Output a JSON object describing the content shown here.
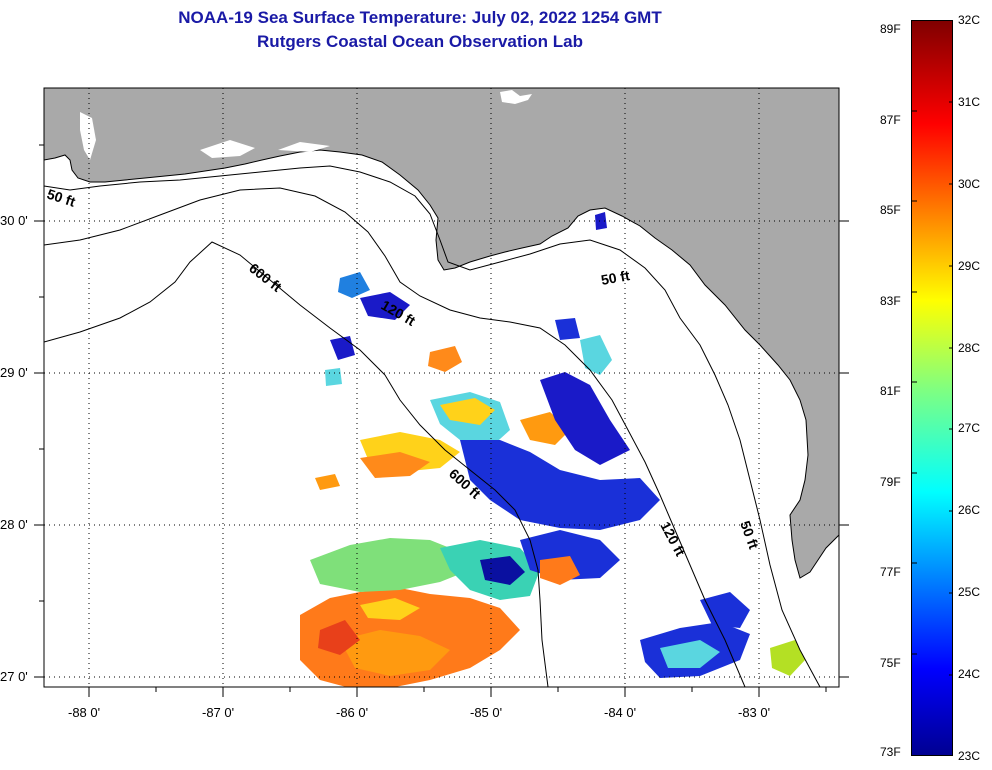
{
  "title": {
    "line1": "NOAA-19 Sea Surface Temperature:  July 02, 2022 1254 GMT",
    "line2": "Rutgers Coastal Ocean Observation Lab"
  },
  "map": {
    "lon_labels": [
      "-88 0'",
      "-87 0'",
      "-86 0'",
      "-85 0'",
      "-84 0'",
      "-83 0'"
    ],
    "lat_labels": [
      "30 0'",
      "29 0'",
      "28 0'",
      "27 0'"
    ],
    "contour_labels": {
      "c50_west": "50 ft",
      "c600_north": "600 ft",
      "c120_north": "120 ft",
      "c50_east": "50 ft",
      "c600_south": "600 ft",
      "c120_south": "120 ft",
      "c50_south": "50 ft"
    },
    "colors": {
      "land": "#a9a9a9",
      "ocean": "#ffffff",
      "grid": "#000000"
    }
  },
  "colorbar": {
    "fahrenheit_labels": [
      "89F",
      "87F",
      "85F",
      "83F",
      "81F",
      "79F",
      "77F",
      "75F",
      "73F"
    ],
    "celsius_labels": [
      "32C",
      "31C",
      "30C",
      "29C",
      "28C",
      "27C",
      "26C",
      "25C",
      "24C",
      "23C"
    ],
    "range_c": [
      23,
      32
    ],
    "range_f": [
      73,
      89
    ]
  }
}
